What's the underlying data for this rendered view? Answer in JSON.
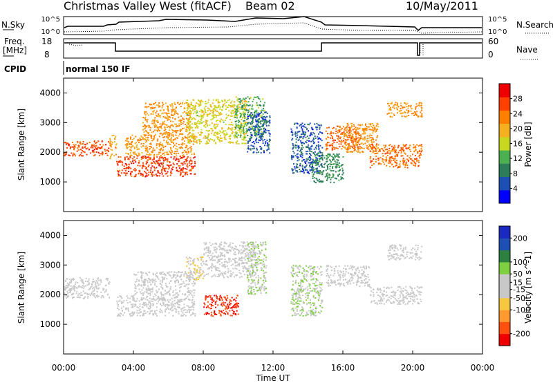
{
  "header": {
    "title": "Christmas Valley West (fitACF)",
    "beam": "Beam 02",
    "date": "10/May/2011"
  },
  "strip_nsky": {
    "left_label": "N.Sky",
    "right_label": "N.Search",
    "left_ticks": [
      "10^5",
      "10^0"
    ],
    "right_ticks": [
      "10^5",
      "10^0"
    ]
  },
  "strip_freq": {
    "left_label_1": "Freq.",
    "left_label_2": "[MHz]",
    "right_label": "Nave",
    "left_ticks": [
      "18",
      "8"
    ],
    "right_ticks": [
      "60",
      "0"
    ]
  },
  "cpid": {
    "label": "CPID",
    "value": "normal 150 IF"
  },
  "colors": {
    "power": [
      "#0000ff",
      "#1e4fb4",
      "#2e7d5a",
      "#4caf50",
      "#c8d820",
      "#f5b020",
      "#ff8000",
      "#ff4000",
      "#ee0000"
    ],
    "velocity": [
      "#ee0000",
      "#ff5010",
      "#ff9a30",
      "#f5c840",
      "#c8c8c8",
      "#c8c8c8",
      "#7fd040",
      "#2e8040",
      "#1e4fb4",
      "#1a2ac0"
    ]
  },
  "chart_data": [
    {
      "type": "heatmap",
      "name": "power",
      "xlabel": "",
      "ylabel": "Slant Range [km]",
      "xlim": [
        0,
        24
      ],
      "ylim": [
        0,
        4500
      ],
      "x_ticks": [
        "00:00",
        "04:00",
        "08:00",
        "12:00",
        "16:00",
        "20:00",
        "00:00"
      ],
      "y_ticks": [
        1000,
        2000,
        3000,
        4000
      ],
      "colorbar_label": "Power [dB]",
      "colorbar_ticks": [
        4,
        8,
        12,
        16,
        20,
        24,
        28
      ],
      "colorbar_range": [
        0,
        32
      ],
      "bands": [
        {
          "x": [
            0.0,
            2.6
          ],
          "y": [
            1900,
            2400
          ],
          "value": 26
        },
        {
          "x": [
            2.6,
            3.0
          ],
          "y": [
            1800,
            2600
          ],
          "value": 20
        },
        {
          "x": [
            3.0,
            7.5
          ],
          "y": [
            1200,
            1900
          ],
          "value": 27
        },
        {
          "x": [
            3.5,
            7.5
          ],
          "y": [
            1900,
            2600
          ],
          "value": 22
        },
        {
          "x": [
            4.5,
            7.3
          ],
          "y": [
            2600,
            3700
          ],
          "value": 22
        },
        {
          "x": [
            7.0,
            10.5
          ],
          "y": [
            2300,
            3800
          ],
          "value": 17
        },
        {
          "x": [
            9.8,
            11.5
          ],
          "y": [
            2500,
            3900
          ],
          "value": 12
        },
        {
          "x": [
            10.5,
            11.8
          ],
          "y": [
            2000,
            3400
          ],
          "value": 6
        },
        {
          "x": [
            13.0,
            14.8
          ],
          "y": [
            1300,
            3000
          ],
          "value": 6
        },
        {
          "x": [
            14.2,
            16.0
          ],
          "y": [
            1000,
            2000
          ],
          "value": 10
        },
        {
          "x": [
            15.0,
            17.0
          ],
          "y": [
            2100,
            2900
          ],
          "value": 25
        },
        {
          "x": [
            16.0,
            18.0
          ],
          "y": [
            2000,
            3000
          ],
          "value": 22
        },
        {
          "x": [
            17.5,
            20.5
          ],
          "y": [
            1500,
            2300
          ],
          "value": 24
        },
        {
          "x": [
            18.5,
            20.5
          ],
          "y": [
            3200,
            3700
          ],
          "value": 22
        }
      ]
    },
    {
      "type": "heatmap",
      "name": "velocity",
      "xlabel": "Time UT",
      "ylabel": "Slant Range [km]",
      "xlim": [
        0,
        24
      ],
      "ylim": [
        0,
        4500
      ],
      "x_ticks": [
        "00:00",
        "04:00",
        "08:00",
        "12:00",
        "16:00",
        "20:00",
        "00:00"
      ],
      "y_ticks": [
        1000,
        2000,
        3000,
        4000
      ],
      "colorbar_label": "Velocity [m s^-1]",
      "colorbar_ticks": [
        200,
        100,
        50,
        15,
        -15,
        -50,
        -100,
        -200
      ],
      "colorbar_range": [
        -250,
        250
      ],
      "bands": [
        {
          "x": [
            0.0,
            2.6
          ],
          "y": [
            1900,
            2600
          ],
          "value": 0
        },
        {
          "x": [
            3.0,
            7.5
          ],
          "y": [
            1300,
            2000
          ],
          "value": 0
        },
        {
          "x": [
            4.0,
            7.5
          ],
          "y": [
            2000,
            2800
          ],
          "value": 0
        },
        {
          "x": [
            7.0,
            8.0
          ],
          "y": [
            2500,
            3300
          ],
          "value": -40
        },
        {
          "x": [
            8.0,
            10.0
          ],
          "y": [
            1300,
            2000
          ],
          "value": -200
        },
        {
          "x": [
            8.0,
            11.0
          ],
          "y": [
            2600,
            3800
          ],
          "value": 0
        },
        {
          "x": [
            10.5,
            11.6
          ],
          "y": [
            2000,
            3800
          ],
          "value": 40
        },
        {
          "x": [
            13.0,
            14.8
          ],
          "y": [
            1300,
            3000
          ],
          "value": 40
        },
        {
          "x": [
            15.0,
            17.5
          ],
          "y": [
            2300,
            3000
          ],
          "value": 0
        },
        {
          "x": [
            17.5,
            20.5
          ],
          "y": [
            1700,
            2300
          ],
          "value": 0
        },
        {
          "x": [
            18.5,
            20.5
          ],
          "y": [
            3200,
            3700
          ],
          "value": 0
        }
      ]
    }
  ]
}
